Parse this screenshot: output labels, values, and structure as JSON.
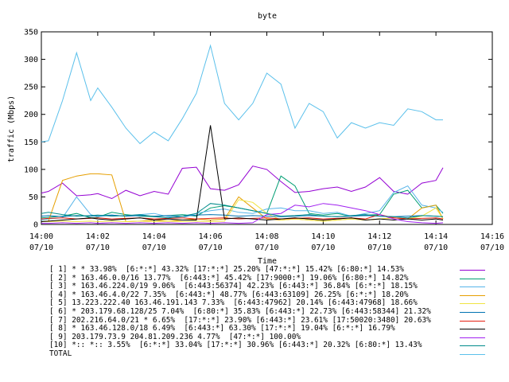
{
  "chart_data": {
    "type": "line",
    "title": "byte",
    "xlabel": "Time",
    "ylabel": "traffic (Mbps)",
    "ylim": [
      0,
      350
    ],
    "yticks": [
      0,
      50,
      100,
      150,
      200,
      250,
      300,
      350
    ],
    "xlim": [
      "14:00",
      "14:16"
    ],
    "xticks": [
      {
        "time": "14:00",
        "date": "07/10",
        "minute": 0
      },
      {
        "time": "14:02",
        "date": "07/10",
        "minute": 2
      },
      {
        "time": "14:04",
        "date": "07/10",
        "minute": 4
      },
      {
        "time": "14:06",
        "date": "07/10",
        "minute": 6
      },
      {
        "time": "14:08",
        "date": "07/10",
        "minute": 8
      },
      {
        "time": "14:10",
        "date": "07/10",
        "minute": 10
      },
      {
        "time": "14:12",
        "date": "07/10",
        "minute": 12
      },
      {
        "time": "14:14",
        "date": "07/10",
        "minute": 14
      },
      {
        "time": "14:16",
        "date": "07/10",
        "minute": 16
      }
    ],
    "grid": false,
    "x_minutes": [
      0,
      0.25,
      0.75,
      1.25,
      1.75,
      2,
      2.5,
      3,
      3.5,
      4,
      4.5,
      5,
      5.5,
      6,
      6.5,
      7,
      7.5,
      8,
      8.5,
      9,
      9.5,
      10,
      10.5,
      11,
      11.5,
      12,
      12.5,
      13,
      13.5,
      14,
      14.25
    ],
    "series": [
      {
        "name": "[ 1] * * 33.98%  [6:*:*] 43.32% [17:*:*] 25.20% [47:*:*] 15.42% [6:80:*] 14.53%",
        "color": "#9400d3",
        "values": [
          57,
          60,
          75,
          52,
          54,
          56,
          47,
          62,
          52,
          60,
          55,
          102,
          104,
          65,
          62,
          72,
          106,
          100,
          78,
          58,
          60,
          65,
          68,
          60,
          68,
          85,
          60,
          55,
          75,
          80,
          103
        ]
      },
      {
        "name": "[ 2] * 163.46.0.0/16 13.77%  [6:443:*] 45.42% [17:9000:*] 19.06% [6:80:*] 14.82%",
        "color": "#009e73",
        "values": [
          12,
          13,
          15,
          20,
          12,
          13,
          22,
          18,
          15,
          14,
          16,
          18,
          15,
          30,
          34,
          30,
          25,
          20,
          88,
          70,
          20,
          17,
          20,
          15,
          17,
          18,
          55,
          62,
          30,
          35,
          20
        ]
      },
      {
        "name": "[ 3] * 163.46.224.0/19 9.06%  [6:443:56374] 42.23% [6:443:*] 36.84% [6:*:*] 18.15%",
        "color": "#56b4e9",
        "values": [
          8,
          10,
          12,
          50,
          18,
          14,
          17,
          15,
          18,
          20,
          14,
          12,
          20,
          25,
          28,
          22,
          20,
          28,
          30,
          25,
          25,
          20,
          22,
          15,
          20,
          25,
          58,
          70,
          35,
          30,
          22
        ]
      },
      {
        "name": "[ 4] * 163.46.4.0/22 7.35%  [6:443:*] 48.77% [6:443:63109] 26.25% [6:*:*] 18.20%",
        "color": "#e69f00",
        "values": [
          5,
          6,
          80,
          88,
          92,
          92,
          90,
          5,
          6,
          8,
          6,
          8,
          10,
          8,
          10,
          50,
          30,
          10,
          8,
          10,
          8,
          6,
          8,
          10,
          8,
          10,
          12,
          10,
          30,
          35,
          10
        ]
      },
      {
        "name": "[ 5] 13.223.222.40 163.46.191.143 7.33%  [6:443:47962] 20.14% [6:443:47968] 18.66%",
        "color": "#f0e442",
        "values": [
          5,
          5,
          6,
          5,
          6,
          5,
          6,
          5,
          6,
          5,
          6,
          5,
          6,
          5,
          6,
          45,
          40,
          20,
          8,
          10,
          8,
          6,
          8,
          10,
          8,
          10,
          12,
          10,
          15,
          30,
          10
        ]
      },
      {
        "name": "[ 6] * 203.179.68.128/25 7.04%  [6:80:*] 35.83% [6:443:*] 22.73% [6:443:58344] 21.32%",
        "color": "#0072b2",
        "values": [
          15,
          16,
          14,
          16,
          15,
          16,
          17,
          15,
          16,
          15,
          16,
          15,
          17,
          18,
          17,
          15,
          16,
          15,
          14,
          15,
          16,
          15,
          14,
          15,
          16,
          15,
          14,
          15,
          16,
          15,
          14
        ]
      },
      {
        "name": "[ 7] 202.216.64.0/21 * 6.65%  [17:*:*] 23.90% [6:443:*] 23.61% [17:50020:3480] 20.63%",
        "color": "#e51e10",
        "values": [
          10,
          11,
          12,
          10,
          11,
          12,
          10,
          11,
          12,
          10,
          11,
          12,
          10,
          11,
          12,
          10,
          11,
          12,
          10,
          11,
          12,
          10,
          11,
          12,
          10,
          18,
          12,
          10,
          11,
          12,
          10
        ]
      },
      {
        "name": "[ 8] * 163.46.128.0/18 6.49%  [6:443:*] 63.30% [17:*:*] 19.04% [6:*:*] 16.79%",
        "color": "#000000",
        "values": [
          5,
          6,
          8,
          10,
          12,
          10,
          8,
          10,
          12,
          8,
          10,
          8,
          8,
          180,
          10,
          12,
          10,
          8,
          10,
          12,
          10,
          8,
          10,
          12,
          8,
          10,
          8,
          10,
          8,
          10,
          8
        ]
      },
      {
        "name": "[ 9] 203.179.73.9 204.81.209.236 4.77%  [47:*:*] 100.00%",
        "color": "#a020f0",
        "values": [
          2,
          2,
          3,
          2,
          3,
          2,
          3,
          2,
          3,
          2,
          3,
          2,
          3,
          2,
          3,
          2,
          3,
          18,
          20,
          35,
          32,
          38,
          35,
          30,
          25,
          18,
          10,
          5,
          3,
          2,
          3
        ]
      },
      {
        "name": "[10] *:: *:: 3.55%  [6:*:*] 33.04% [17:*:*] 30.96% [6:443:*] 20.32% [6:80:*] 13.43%",
        "color": "#008b8b",
        "values": [
          20,
          22,
          18,
          15,
          16,
          17,
          15,
          16,
          18,
          14,
          12,
          15,
          20,
          38,
          35,
          30,
          25,
          20,
          15,
          16,
          18,
          15,
          14,
          16,
          18,
          15,
          14,
          12,
          16,
          15,
          14
        ]
      },
      {
        "name": "TOTAL",
        "color": "#5bc0eb",
        "values": [
          150,
          152,
          225,
          312,
          225,
          248,
          213,
          175,
          147,
          168,
          152,
          192,
          238,
          325,
          220,
          190,
          220,
          275,
          255,
          175,
          220,
          205,
          157,
          185,
          175,
          185,
          180,
          210,
          205,
          190,
          190
        ]
      }
    ]
  }
}
